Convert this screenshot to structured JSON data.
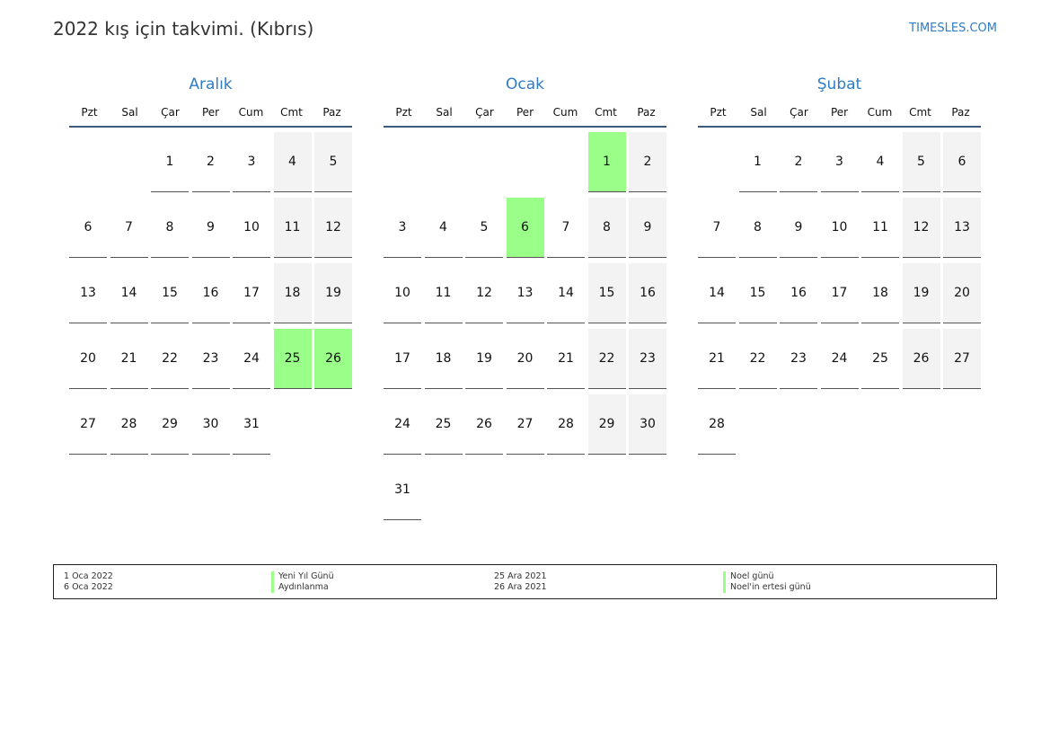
{
  "header": {
    "title": "2022 kış için takvimi. (Kıbrıs)",
    "brand": "TIMESLES.COM"
  },
  "weekdays": [
    "Pzt",
    "Sal",
    "Çar",
    "Per",
    "Cum",
    "Cmt",
    "Paz"
  ],
  "colors": {
    "accent": "#2f7bc4",
    "holiday": "#99ff88",
    "weekend": "#f3f3f3"
  },
  "months": [
    {
      "name": "Aralık",
      "first_weekday": 2,
      "days": 31,
      "holidays": [
        25,
        26
      ]
    },
    {
      "name": "Ocak",
      "first_weekday": 5,
      "days": 31,
      "holidays": [
        1,
        6
      ]
    },
    {
      "name": "Şubat",
      "first_weekday": 1,
      "days": 28,
      "holidays": []
    }
  ],
  "legend": [
    {
      "date": "1 Oca 2022",
      "name": "Yeni Yıl Günü"
    },
    {
      "date": "6 Oca 2022",
      "name": "Aydınlanma"
    },
    {
      "date": "25 Ara 2021",
      "name": "Noel günü"
    },
    {
      "date": "26 Ara 2021",
      "name": "Noel'in ertesi günü"
    }
  ]
}
